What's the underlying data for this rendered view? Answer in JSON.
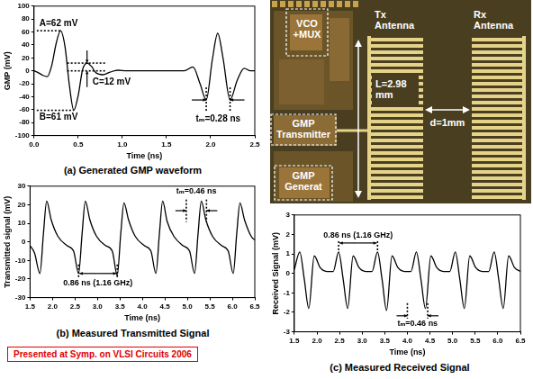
{
  "chart_data": [
    {
      "type": "line",
      "title": "(a) Generated GMP waveform",
      "x_label": "Time (ns)",
      "y_label": "GMP (mV)",
      "x": [
        0,
        0.05,
        0.1,
        0.15,
        0.2,
        0.25,
        0.3,
        0.35,
        0.4,
        0.45,
        0.5,
        0.55,
        0.6,
        0.65,
        0.7,
        0.78,
        0.86,
        0.95,
        1.05,
        1.2,
        1.3,
        1.4,
        1.5,
        1.6,
        1.7,
        1.8,
        1.88,
        1.95,
        2.02,
        2.08,
        2.14,
        2.22,
        2.3,
        2.38,
        2.45,
        2.5
      ],
      "values": [
        0,
        -3,
        -7,
        -9,
        8,
        42,
        62,
        38,
        -22,
        -61,
        -38,
        2,
        12,
        7,
        -3,
        -6,
        -2,
        1,
        0,
        0,
        0,
        0,
        0,
        0,
        0,
        6,
        -20,
        -45,
        18,
        58,
        20,
        -45,
        -15,
        4,
        0,
        0
      ],
      "color": "#000000",
      "xlim": [
        0,
        2.5
      ],
      "xticks": [
        {
          "value": 0,
          "label": "0.0"
        },
        0.5,
        {
          "value": 1,
          "label": "1.0"
        },
        1.5,
        {
          "value": 2,
          "label": "2.0"
        },
        2.5
      ],
      "ylim": [
        -100,
        100
      ],
      "yticks": [
        -100,
        -80,
        -60,
        -40,
        -20,
        0,
        20,
        40,
        60,
        80,
        100
      ],
      "grid": false,
      "annotations": [
        "A=62 mV",
        "B=61 mV",
        "C=12 mV",
        "tₘ=0.28 ns"
      ]
    },
    {
      "type": "line",
      "title": "(b) Measured Transmitted Signal",
      "x_label": "Time (ns)",
      "y_label": "Transmitted signal (mV)",
      "x": [
        1.5,
        1.6,
        1.72,
        1.8,
        1.87,
        1.97,
        2.12,
        2.32,
        2.47,
        2.58,
        2.66,
        2.73,
        2.83,
        2.98,
        3.18,
        3.33,
        3.44,
        3.52,
        3.59,
        3.69,
        3.84,
        4.04,
        4.19,
        4.3,
        4.38,
        4.45,
        4.55,
        4.7,
        4.9,
        5.05,
        5.16,
        5.24,
        5.31,
        5.41,
        5.56,
        5.76,
        5.91,
        6.02,
        6.1,
        6.17,
        6.27,
        6.42,
        6.5
      ],
      "values": [
        -2,
        -6,
        -17,
        5,
        22,
        12,
        3,
        -2,
        -5,
        -17,
        5,
        22,
        12,
        3,
        -2,
        -5,
        -18,
        5,
        21,
        12,
        3,
        -2,
        -5,
        -17,
        5,
        22,
        11,
        3,
        -2,
        -5,
        -17,
        5,
        22,
        12,
        3,
        -2,
        -5,
        -17,
        5,
        21,
        12,
        3,
        1
      ],
      "color": "#000000",
      "xlim": [
        1.5,
        6.5
      ],
      "xticks": [
        1.5,
        {
          "value": 2,
          "label": "2.0"
        },
        2.5,
        {
          "value": 3,
          "label": "3.0"
        },
        3.5,
        {
          "value": 4,
          "label": "4.0"
        },
        4.5,
        {
          "value": 5,
          "label": "5.0"
        },
        5.5,
        {
          "value": 6,
          "label": "6.0"
        },
        6.5
      ],
      "ylim": [
        -30,
        30
      ],
      "yticks": [
        -30,
        -20,
        -10,
        0,
        10,
        20,
        30
      ],
      "grid": false,
      "annotations": [
        "0.86 ns (1.16 GHz)",
        "tₘ=0.46 ns"
      ]
    },
    {
      "type": "line",
      "title": "(c) Measured Received Signal",
      "x_label": "Time (ns)",
      "y_label": "Received Signal (mV)",
      "x": [
        1.5,
        1.62,
        1.72,
        1.82,
        1.94,
        2.07,
        2.22,
        2.36,
        2.48,
        2.58,
        2.68,
        2.8,
        2.93,
        3.08,
        3.22,
        3.34,
        3.44,
        3.54,
        3.66,
        3.79,
        3.94,
        4.08,
        4.2,
        4.3,
        4.4,
        4.52,
        4.65,
        4.8,
        4.94,
        5.06,
        5.16,
        5.26,
        5.38,
        5.51,
        5.66,
        5.8,
        5.92,
        6.02,
        6.12,
        6.24,
        6.37,
        6.5
      ],
      "values": [
        0.2,
        1.1,
        -0.3,
        -1.8,
        0.9,
        0.3,
        0.1,
        0.1,
        1.1,
        -0.3,
        -1.8,
        0.9,
        0.3,
        0.1,
        0.1,
        1.1,
        -0.3,
        -1.9,
        0.9,
        0.3,
        0.1,
        0.1,
        1.1,
        -0.3,
        -1.8,
        0.9,
        0.3,
        0.1,
        0.1,
        1.1,
        -0.3,
        -1.8,
        0.9,
        0.3,
        0.1,
        0.1,
        1.1,
        -0.3,
        -1.8,
        0.9,
        0.3,
        0.1
      ],
      "color": "#000000",
      "xlim": [
        1.5,
        6.5
      ],
      "xticks": [
        1.5,
        {
          "value": 2,
          "label": "2.0"
        },
        2.5,
        {
          "value": 3,
          "label": "3.0"
        },
        3.5,
        {
          "value": 4,
          "label": "4.0"
        },
        4.5,
        {
          "value": 5,
          "label": "5.0"
        },
        5.5,
        {
          "value": 6,
          "label": "6.0"
        },
        6.5
      ],
      "ylim": [
        -3,
        3
      ],
      "yticks": [
        -3,
        -2,
        -1,
        0,
        1,
        2,
        3
      ],
      "grid": false,
      "annotations": [
        "0.86 ns (1.16 GHz)",
        "tₘ=0.46 ns"
      ]
    }
  ],
  "chip_photo": {
    "vco": "VCO +MUX",
    "tx_antenna": "Tx Antenna",
    "rx_antenna": "Rx Antenna",
    "transmitter": "GMP Transmitter",
    "generator": "GMP Generat",
    "length": "L=2.98 mm",
    "distance": "d=1mm"
  },
  "footer": "Presented at Symp. on VLSI Circuits 2006"
}
